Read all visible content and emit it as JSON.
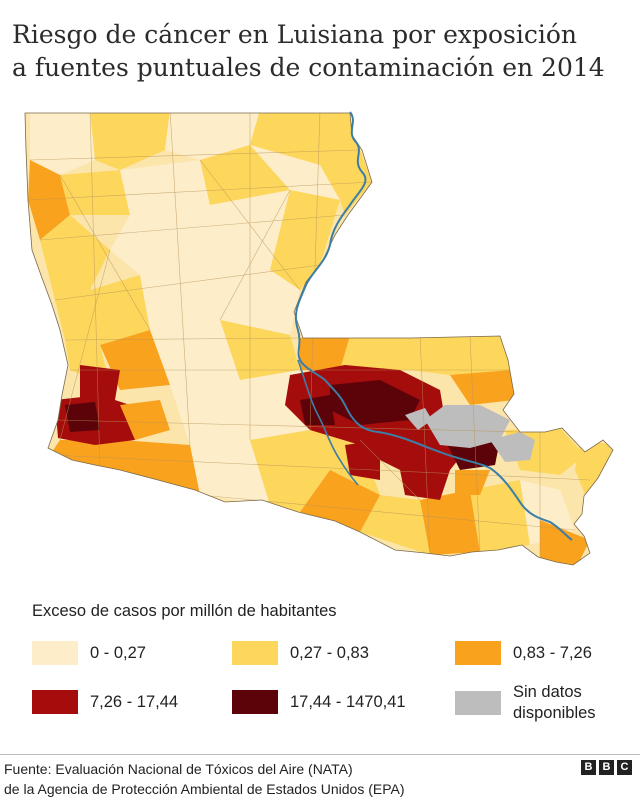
{
  "title": {
    "line1": "Riesgo de cáncer en Luisiana por exposición",
    "line2": "a fuentes puntuales de contaminación en 2014"
  },
  "legend": {
    "title": "Exceso de casos por millón de habitantes",
    "items": [
      {
        "label": "0 - 0,27",
        "color": "#fdedc9"
      },
      {
        "label": "0,27 - 0,83",
        "color": "#fdd65c"
      },
      {
        "label": "0,83 - 7,26",
        "color": "#f9a21e"
      },
      {
        "label": "7,26 - 17,44",
        "color": "#a50d0d"
      },
      {
        "label": "17,44 - 1470,41",
        "color": "#5b0308"
      },
      {
        "label": "Sin datos disponibles",
        "color": "#bdbdbd"
      }
    ]
  },
  "source": {
    "line1": "Fuente:  Evaluación Nacional de Tóxicos del Aire (NATA)",
    "line2": "de la Agencia de Protección Ambiental de Estados Unidos (EPA)"
  },
  "logo": [
    "B",
    "B",
    "C"
  ],
  "colors": {
    "river": "#3d7ea6",
    "tract_border": "#8a6a3a",
    "no_data": "#bdbdbd"
  }
}
